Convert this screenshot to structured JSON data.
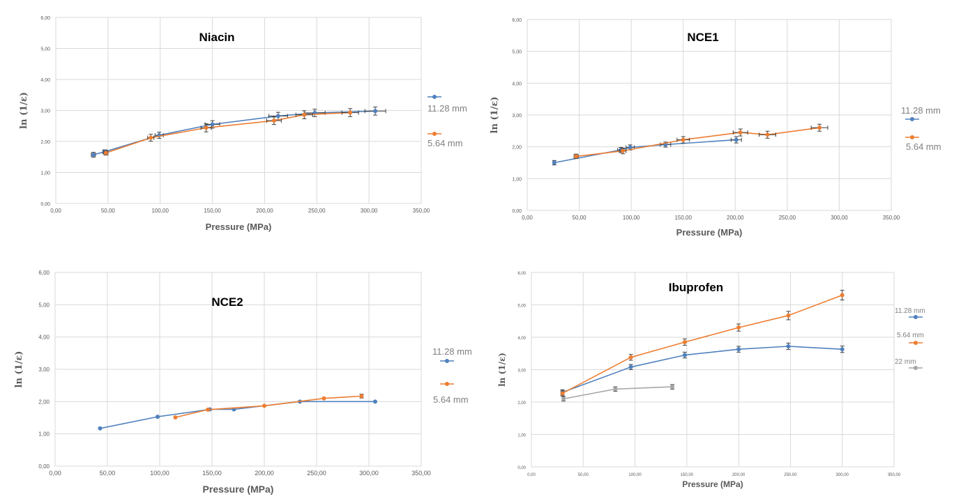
{
  "chart_data": [
    {
      "type": "line",
      "title": "Niacin",
      "xlabel": "Pressure (MPa)",
      "ylabel": "ln (1/ε)",
      "xlim": [
        0,
        350
      ],
      "ylim": [
        0,
        6
      ],
      "xticks": [
        "0,00",
        "50,00",
        "100,00",
        "150,00",
        "200,00",
        "250,00",
        "300,00",
        "350,00"
      ],
      "yticks": [
        "0,00",
        "1,00",
        "2,00",
        "3,00",
        "4,00",
        "5,00",
        "6,00"
      ],
      "grid": true,
      "legend_position": "right",
      "series": [
        {
          "name": "11.28 mm",
          "color": "#4f81bd",
          "points": [
            {
              "x": 36,
              "y": 1.57,
              "yerr": 0.08,
              "xerr": 2
            },
            {
              "x": 47,
              "y": 1.67,
              "yerr": 0.06,
              "xerr": 2
            },
            {
              "x": 99,
              "y": 2.2,
              "yerr": 0.1,
              "xerr": 4
            },
            {
              "x": 150,
              "y": 2.55,
              "yerr": 0.12,
              "xerr": 7
            },
            {
              "x": 213,
              "y": 2.82,
              "yerr": 0.12,
              "xerr": 9
            },
            {
              "x": 248,
              "y": 2.92,
              "yerr": 0.12,
              "xerr": 10
            },
            {
              "x": 306,
              "y": 2.98,
              "yerr": 0.13,
              "xerr": 10
            }
          ]
        },
        {
          "name": "5.64 mm",
          "color": "#ed7d31",
          "points": [
            {
              "x": 48,
              "y": 1.63,
              "yerr": 0.07,
              "xerr": 2
            },
            {
              "x": 91,
              "y": 2.12,
              "yerr": 0.11,
              "xerr": 3
            },
            {
              "x": 144,
              "y": 2.44,
              "yerr": 0.13,
              "xerr": 5
            },
            {
              "x": 209,
              "y": 2.67,
              "yerr": 0.12,
              "xerr": 7
            },
            {
              "x": 238,
              "y": 2.86,
              "yerr": 0.13,
              "xerr": 8
            },
            {
              "x": 282,
              "y": 2.93,
              "yerr": 0.13,
              "xerr": 8
            }
          ]
        }
      ]
    },
    {
      "type": "line",
      "title": "NCE1",
      "xlabel": "Pressure (MPa)",
      "ylabel": "ln (1/ε)",
      "xlim": [
        0,
        350
      ],
      "ylim": [
        0,
        6
      ],
      "xticks": [
        "0,00",
        "50,00",
        "100,00",
        "150,00",
        "200,00",
        "250,00",
        "300,00",
        "350,00"
      ],
      "yticks": [
        "0,00",
        "1,00",
        "2,00",
        "3,00",
        "4,00",
        "5,00",
        "6,00"
      ],
      "grid": true,
      "legend_position": "right",
      "series": [
        {
          "name": "11.28 mm",
          "color": "#4f81bd",
          "points": [
            {
              "x": 26,
              "y": 1.5,
              "yerr": 0.07,
              "xerr": 1
            },
            {
              "x": 90,
              "y": 1.9,
              "yerr": 0.08,
              "xerr": 3
            },
            {
              "x": 99,
              "y": 1.98,
              "yerr": 0.08,
              "xerr": 4
            },
            {
              "x": 133,
              "y": 2.07,
              "yerr": 0.08,
              "xerr": 5
            },
            {
              "x": 201,
              "y": 2.22,
              "yerr": 0.1,
              "xerr": 5
            }
          ]
        },
        {
          "name": "5.64 mm",
          "color": "#ed7d31",
          "points": [
            {
              "x": 47,
              "y": 1.7,
              "yerr": 0.07,
              "xerr": 2
            },
            {
              "x": 92,
              "y": 1.87,
              "yerr": 0.09,
              "xerr": 3
            },
            {
              "x": 150,
              "y": 2.22,
              "yerr": 0.1,
              "xerr": 6
            },
            {
              "x": 205,
              "y": 2.45,
              "yerr": 0.11,
              "xerr": 7
            },
            {
              "x": 231,
              "y": 2.38,
              "yerr": 0.11,
              "xerr": 8
            },
            {
              "x": 281,
              "y": 2.6,
              "yerr": 0.11,
              "xerr": 8
            }
          ]
        }
      ]
    },
    {
      "type": "line",
      "title": "NCE2",
      "xlabel": "Pressure (MPa)",
      "ylabel": "ln (1/ε)",
      "xlim": [
        0,
        350
      ],
      "ylim": [
        0,
        6
      ],
      "xticks": [
        "0,00",
        "50,00",
        "100,00",
        "150,00",
        "200,00",
        "250,00",
        "300,00",
        "350,00"
      ],
      "yticks": [
        "0,00",
        "1,00",
        "2,00",
        "3,00",
        "4,00",
        "5,00",
        "6,00"
      ],
      "grid": true,
      "legend_position": "right",
      "series": [
        {
          "name": "11.28 mm",
          "color": "#4f81bd",
          "points": [
            {
              "x": 43,
              "y": 1.17
            },
            {
              "x": 98,
              "y": 1.53
            },
            {
              "x": 148,
              "y": 1.76
            },
            {
              "x": 171,
              "y": 1.76
            },
            {
              "x": 234,
              "y": 2.0
            },
            {
              "x": 306,
              "y": 2.0
            }
          ]
        },
        {
          "name": "5.64 mm",
          "color": "#ed7d31",
          "points": [
            {
              "x": 115,
              "y": 1.51
            },
            {
              "x": 146,
              "y": 1.75
            },
            {
              "x": 200,
              "y": 1.87
            },
            {
              "x": 257,
              "y": 2.1
            },
            {
              "x": 293,
              "y": 2.17,
              "yerr": 0.06
            }
          ]
        }
      ]
    },
    {
      "type": "line",
      "title": "Ibuprofen",
      "xlabel": "Pressure (MPa)",
      "ylabel": "ln (1/ε)",
      "xlim": [
        0,
        350
      ],
      "ylim": [
        0,
        6
      ],
      "xticks": [
        "0,00",
        "50,00",
        "100,00",
        "150,00",
        "200,00",
        "250,00",
        "300,00",
        "350,00"
      ],
      "yticks": [
        "0,00",
        "1,00",
        "2,00",
        "3,00",
        "4,00",
        "5,00",
        "6,00"
      ],
      "grid": true,
      "legend_position": "right",
      "series": [
        {
          "name": "11.28 mm",
          "color": "#4f81bd",
          "points": [
            {
              "x": 30,
              "y": 2.3,
              "yerr": 0.08
            },
            {
              "x": 96,
              "y": 3.08,
              "yerr": 0.08
            },
            {
              "x": 148,
              "y": 3.45,
              "yerr": 0.09
            },
            {
              "x": 200,
              "y": 3.63,
              "yerr": 0.09
            },
            {
              "x": 248,
              "y": 3.72,
              "yerr": 0.1
            },
            {
              "x": 300,
              "y": 3.63,
              "yerr": 0.1
            }
          ]
        },
        {
          "name": "5.64 mm",
          "color": "#ed7d31",
          "points": [
            {
              "x": 30,
              "y": 2.27,
              "yerr": 0.08
            },
            {
              "x": 96,
              "y": 3.38,
              "yerr": 0.09
            },
            {
              "x": 148,
              "y": 3.85,
              "yerr": 0.1
            },
            {
              "x": 200,
              "y": 4.3,
              "yerr": 0.11
            },
            {
              "x": 248,
              "y": 4.67,
              "yerr": 0.13
            },
            {
              "x": 300,
              "y": 5.3,
              "yerr": 0.15
            }
          ]
        },
        {
          "name": "22 mm",
          "color": "#a5a5a5",
          "points": [
            {
              "x": 31,
              "y": 2.1,
              "yerr": 0.07
            },
            {
              "x": 81,
              "y": 2.4,
              "yerr": 0.07
            },
            {
              "x": 136,
              "y": 2.47,
              "yerr": 0.07
            }
          ]
        }
      ]
    }
  ]
}
